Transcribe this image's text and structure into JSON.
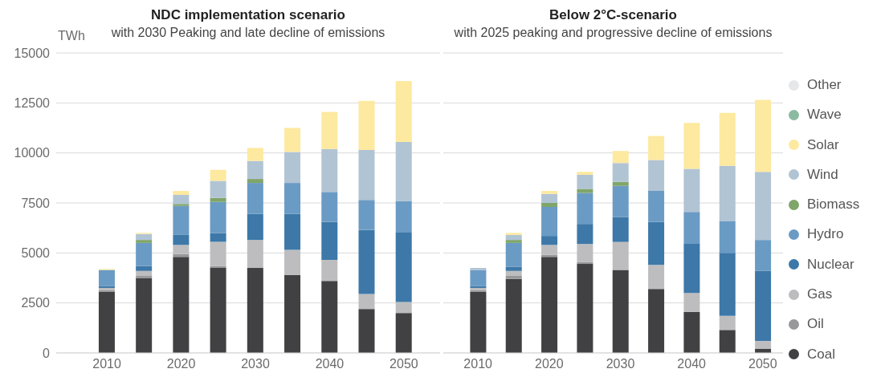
{
  "chart_data": [
    {
      "type": "bar",
      "title": "NDC implementation scenario",
      "subtitle": "with 2030 Peaking and late decline of emissions",
      "ylabel": "TWh",
      "categories": [
        "2010",
        null,
        "2020",
        null,
        "2030",
        null,
        "2040",
        null,
        "2050"
      ],
      "stacked": true,
      "ylim": [
        0,
        15000
      ],
      "yticks": [
        0,
        2500,
        5000,
        7500,
        10000,
        12500,
        15000
      ],
      "grid": "y",
      "legend": false,
      "series": [
        {
          "color": "#414143",
          "values": [
            3050,
            3750,
            4800,
            4250,
            4250,
            3900,
            3600,
            2200,
            2000
          ]
        },
        {
          "color": "#98989a",
          "values": [
            100,
            100,
            150,
            100,
            0,
            0,
            0,
            0,
            0
          ]
        },
        {
          "color": "#bdbdbf",
          "values": [
            100,
            250,
            450,
            1200,
            1400,
            1250,
            1050,
            750,
            550
          ]
        },
        {
          "color": "#3d78a8",
          "values": [
            100,
            250,
            500,
            450,
            1300,
            1800,
            1900,
            3200,
            3500
          ]
        },
        {
          "color": "#6a9bc4",
          "values": [
            800,
            1150,
            1450,
            1550,
            1550,
            1550,
            1500,
            1500,
            1550
          ]
        },
        {
          "color": "#80a56a",
          "values": [
            0,
            150,
            100,
            200,
            200,
            0,
            0,
            0,
            0
          ]
        },
        {
          "color": "#b1c4d4",
          "values": [
            0,
            300,
            450,
            850,
            900,
            1550,
            2150,
            2500,
            2950
          ]
        },
        {
          "color": "#fde99f",
          "values": [
            50,
            50,
            200,
            550,
            650,
            1200,
            1850,
            2450,
            3050
          ]
        },
        {
          "color": "#8bbaa0",
          "values": [
            0,
            0,
            0,
            0,
            0,
            0,
            0,
            0,
            0
          ]
        },
        {
          "color": "#e6e7e9",
          "values": [
            0,
            0,
            0,
            0,
            0,
            0,
            0,
            0,
            0
          ]
        }
      ]
    },
    {
      "type": "bar",
      "title": "Below 2°C-scenario",
      "subtitle": "with 2025 peaking and progressive decline of emissions",
      "categories": [
        "2010",
        null,
        "2020",
        null,
        "2030",
        null,
        "2040",
        null,
        "2050"
      ],
      "stacked": true,
      "ylim": [
        0,
        15000
      ],
      "yticks": [
        0,
        2500,
        5000,
        7500,
        10000,
        12500,
        15000
      ],
      "grid": "y",
      "tick_labels": "x",
      "legend": "right",
      "series": [
        {
          "name": "Coal",
          "color": "#414143",
          "values": [
            3050,
            3700,
            4800,
            4450,
            4150,
            3200,
            2050,
            1150,
            200
          ]
        },
        {
          "name": "Oil",
          "color": "#98989a",
          "values": [
            100,
            150,
            100,
            100,
            0,
            0,
            0,
            0,
            0
          ]
        },
        {
          "name": "Gas",
          "color": "#bdbdbf",
          "values": [
            100,
            250,
            500,
            900,
            1400,
            1200,
            950,
            700,
            400
          ]
        },
        {
          "name": "Nuclear",
          "color": "#3d78a8",
          "values": [
            100,
            200,
            450,
            1000,
            1250,
            2150,
            2450,
            3150,
            3500
          ]
        },
        {
          "name": "Hydro",
          "color": "#6a9bc4",
          "values": [
            800,
            1200,
            1450,
            1550,
            1550,
            1550,
            1600,
            1600,
            1550
          ]
        },
        {
          "name": "Biomass",
          "color": "#80a56a",
          "values": [
            0,
            150,
            200,
            200,
            200,
            0,
            0,
            0,
            0
          ]
        },
        {
          "name": "Wind",
          "color": "#b1c4d4",
          "values": [
            100,
            250,
            450,
            700,
            950,
            1550,
            2150,
            2750,
            3400
          ]
        },
        {
          "name": "Solar",
          "color": "#fde99f",
          "values": [
            0,
            100,
            150,
            150,
            600,
            1200,
            2300,
            2650,
            3600
          ]
        },
        {
          "name": "Wave",
          "color": "#8bbaa0",
          "values": [
            0,
            0,
            0,
            0,
            0,
            0,
            0,
            0,
            0
          ]
        },
        {
          "name": "Other",
          "color": "#e6e7e9",
          "values": [
            0,
            0,
            0,
            0,
            0,
            0,
            0,
            0,
            0
          ]
        }
      ]
    }
  ]
}
